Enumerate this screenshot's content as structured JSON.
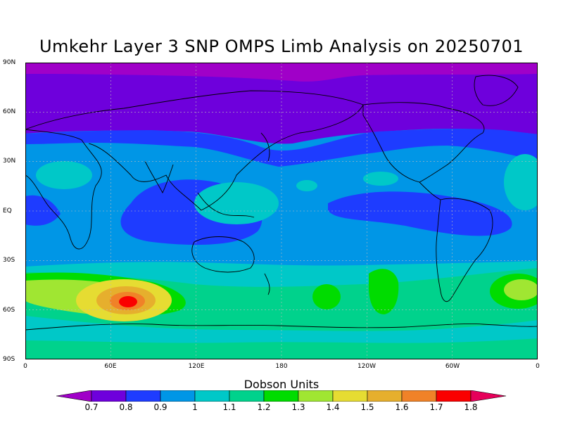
{
  "title": "Umkehr Layer 3 SNP OMPS Limb Analysis on 20250701",
  "lat_labels": [
    "90N",
    "60N",
    "30N",
    "EQ",
    "30S",
    "60S",
    "90S"
  ],
  "lon_labels": [
    "0",
    "60E",
    "120E",
    "180",
    "120W",
    "60W",
    "0"
  ],
  "colorbar": {
    "title": "Dobson Units",
    "labels": [
      "0.7",
      "0.8",
      "0.9",
      "1",
      "1.1",
      "1.2",
      "1.3",
      "1.4",
      "1.5",
      "1.6",
      "1.7",
      "1.8"
    ],
    "colors": [
      "#a000c8",
      "#6e00dc",
      "#1e3cff",
      "#0096e6",
      "#00c8c8",
      "#00d28c",
      "#00dc00",
      "#a0e632",
      "#e6dc32",
      "#e6af2d",
      "#f08228",
      "#fa0000",
      "#e6005a"
    ]
  }
}
